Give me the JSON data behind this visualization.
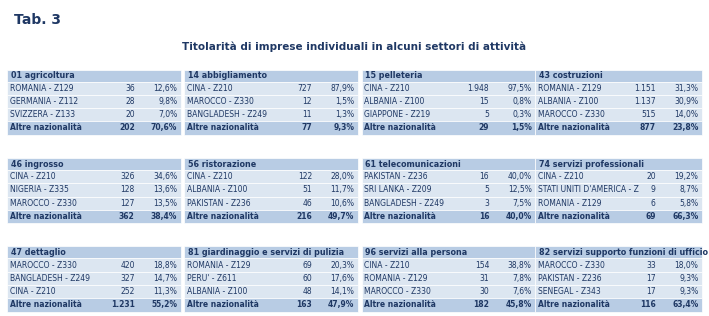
{
  "title": "Titolarità di imprese individuali in alcuni settori di attività",
  "tab_label": "Tab. 3",
  "sections": [
    {
      "header": "01 agricoltura",
      "rows": [
        [
          "ROMANIA - Z129",
          "36",
          "12,6%"
        ],
        [
          "GERMANIA - Z112",
          "28",
          "9,8%"
        ],
        [
          "SVIZZERA - Z133",
          "20",
          "7,0%"
        ],
        [
          "Altre nazionalità",
          "202",
          "70,6%"
        ]
      ]
    },
    {
      "header": "14 abbigliamento",
      "rows": [
        [
          "CINA - Z210",
          "727",
          "87,9%"
        ],
        [
          "MAROCCO - Z330",
          "12",
          "1,5%"
        ],
        [
          "BANGLADESH - Z249",
          "11",
          "1,3%"
        ],
        [
          "Altre nazionalità",
          "77",
          "9,3%"
        ]
      ]
    },
    {
      "header": "15 pelleteria",
      "rows": [
        [
          "CINA - Z210",
          "1.948",
          "97,5%"
        ],
        [
          "ALBANIA - Z100",
          "15",
          "0,8%"
        ],
        [
          "GIAPPONE - Z219",
          "5",
          "0,3%"
        ],
        [
          "Altre nazionalità",
          "29",
          "1,5%"
        ]
      ]
    },
    {
      "header": "43 costruzioni",
      "rows": [
        [
          "ROMANIA - Z129",
          "1.151",
          "31,3%"
        ],
        [
          "ALBANIA - Z100",
          "1.137",
          "30,9%"
        ],
        [
          "MAROCCO - Z330",
          "515",
          "14,0%"
        ],
        [
          "Altre nazionalità",
          "877",
          "23,8%"
        ]
      ]
    },
    {
      "header": "46 ingrosso",
      "rows": [
        [
          "CINA - Z210",
          "326",
          "34,6%"
        ],
        [
          "NIGERIA - Z335",
          "128",
          "13,6%"
        ],
        [
          "MAROCCO - Z330",
          "127",
          "13,5%"
        ],
        [
          "Altre nazionalità",
          "362",
          "38,4%"
        ]
      ]
    },
    {
      "header": "56 ristorazione",
      "rows": [
        [
          "CINA - Z210",
          "122",
          "28,0%"
        ],
        [
          "ALBANIA - Z100",
          "51",
          "11,7%"
        ],
        [
          "PAKISTAN - Z236",
          "46",
          "10,6%"
        ],
        [
          "Altre nazionalità",
          "216",
          "49,7%"
        ]
      ]
    },
    {
      "header": "61 telecomunicazioni",
      "rows": [
        [
          "PAKISTAN - Z236",
          "16",
          "40,0%"
        ],
        [
          "SRI LANKA - Z209",
          "5",
          "12,5%"
        ],
        [
          "BANGLADESH - Z249",
          "3",
          "7,5%"
        ],
        [
          "Altre nazionalità",
          "16",
          "40,0%"
        ]
      ]
    },
    {
      "header": "74 servizi professionali",
      "rows": [
        [
          "CINA - Z210",
          "20",
          "19,2%"
        ],
        [
          "STATI UNITI D'AMERICA - Z",
          "9",
          "8,7%"
        ],
        [
          "ROMANIA - Z129",
          "6",
          "5,8%"
        ],
        [
          "Altre nazionalità",
          "69",
          "66,3%"
        ]
      ]
    },
    {
      "header": "47 dettaglio",
      "rows": [
        [
          "MAROCCO - Z330",
          "420",
          "18,8%"
        ],
        [
          "BANGLADESH - Z249",
          "327",
          "14,7%"
        ],
        [
          "CINA - Z210",
          "252",
          "11,3%"
        ],
        [
          "Altre nazionalità",
          "1.231",
          "55,2%"
        ]
      ]
    },
    {
      "header": "81 giardinaggio e servizi di pulizia",
      "rows": [
        [
          "ROMANIA - Z129",
          "69",
          "20,3%"
        ],
        [
          "PERU' - Z611",
          "60",
          "17,6%"
        ],
        [
          "ALBANIA - Z100",
          "48",
          "14,1%"
        ],
        [
          "Altre nazionalità",
          "163",
          "47,9%"
        ]
      ]
    },
    {
      "header": "96 servizi alla persona",
      "rows": [
        [
          "CINA - Z210",
          "154",
          "38,8%"
        ],
        [
          "ROMANIA - Z129",
          "31",
          "7,8%"
        ],
        [
          "MAROCCO - Z330",
          "30",
          "7,6%"
        ],
        [
          "Altre nazionalità",
          "182",
          "45,8%"
        ]
      ]
    },
    {
      "header": "82 servizi supporto funzioni di ufficio",
      "rows": [
        [
          "MAROCCO - Z330",
          "33",
          "18,0%"
        ],
        [
          "PAKISTAN - Z236",
          "17",
          "9,3%"
        ],
        [
          "SENEGAL - Z343",
          "17",
          "9,3%"
        ],
        [
          "Altre nazionalità",
          "116",
          "63,4%"
        ]
      ]
    }
  ],
  "header_bg": "#b8cce4",
  "row_bg": "#dce6f1",
  "last_row_bg": "#b8cce4",
  "text_color": "#1f3864",
  "header_text_color": "#1f3864",
  "bg_color": "#ffffff",
  "font_size": 5.5,
  "header_font_size": 5.8
}
